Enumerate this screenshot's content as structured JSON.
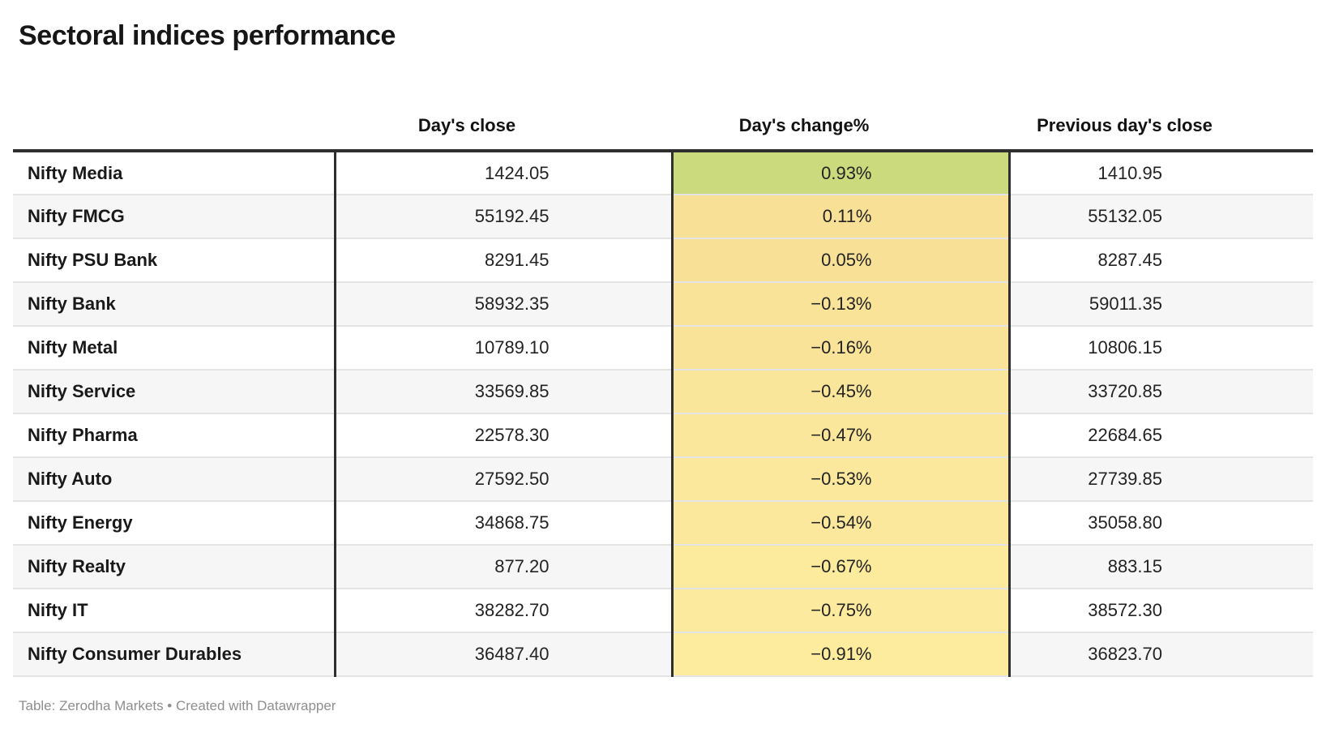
{
  "title": "Sectoral indices performance",
  "columns": {
    "index": "",
    "days_close": "Day's close",
    "days_change": "Day's change%",
    "prev_close": "Previous day's close"
  },
  "footer": "Table: Zerodha Markets • Created with Datawrapper",
  "colors": {
    "positive_cell_green": "#cbda7d",
    "negative_cell_yellow_dark": "#f8e096",
    "negative_cell_yellow_light": "#fdec9e",
    "zebra_stripe": "#f6f6f6",
    "heavy_border": "#2e2e2e",
    "row_divider": "#e4e4e4",
    "footer_text": "#8e8e8e"
  },
  "chart_data": {
    "type": "table",
    "title": "Sectoral indices performance",
    "columns": [
      "",
      "Day's close",
      "Day's change%",
      "Previous day's close"
    ],
    "rows": [
      {
        "index": "Nifty Media",
        "days_close": 1424.05,
        "days_change_pct": 0.93,
        "prev_close": 1410.95
      },
      {
        "index": "Nifty FMCG",
        "days_close": 55192.45,
        "days_change_pct": 0.11,
        "prev_close": 55132.05
      },
      {
        "index": "Nifty PSU Bank",
        "days_close": 8291.45,
        "days_change_pct": 0.05,
        "prev_close": 8287.45
      },
      {
        "index": "Nifty Bank",
        "days_close": 58932.35,
        "days_change_pct": -0.13,
        "prev_close": 59011.35
      },
      {
        "index": "Nifty Metal",
        "days_close": 10789.1,
        "days_change_pct": -0.16,
        "prev_close": 10806.15
      },
      {
        "index": "Nifty Service",
        "days_close": 33569.85,
        "days_change_pct": -0.45,
        "prev_close": 33720.85
      },
      {
        "index": "Nifty Pharma",
        "days_close": 22578.3,
        "days_change_pct": -0.47,
        "prev_close": 22684.65
      },
      {
        "index": "Nifty Auto",
        "days_close": 27592.5,
        "days_change_pct": -0.53,
        "prev_close": 27739.85
      },
      {
        "index": "Nifty Energy",
        "days_close": 34868.75,
        "days_change_pct": -0.54,
        "prev_close": 35058.8
      },
      {
        "index": "Nifty Realty",
        "days_close": 877.2,
        "days_change_pct": -0.67,
        "prev_close": 883.15
      },
      {
        "index": "Nifty IT",
        "days_close": 38282.7,
        "days_change_pct": -0.75,
        "prev_close": 38572.3
      },
      {
        "index": "Nifty Consumer Durables",
        "days_close": 36487.4,
        "days_change_pct": -0.91,
        "prev_close": 36823.7
      }
    ],
    "color_scale_note": "Day's change% cells shaded green (positive high) to pale yellow (negative)",
    "source": "Zerodha Markets",
    "tool": "Datawrapper"
  },
  "display_rows": [
    {
      "name": "Nifty Media",
      "close": "1424.05",
      "change": "0.93%",
      "prev": "1410.95",
      "change_bg": "#cbda7d"
    },
    {
      "name": "Nifty FMCG",
      "close": "55192.45",
      "change": "0.11%",
      "prev": "55132.05",
      "change_bg": "#f8e096"
    },
    {
      "name": "Nifty PSU Bank",
      "close": "8291.45",
      "change": "0.05%",
      "prev": "8287.45",
      "change_bg": "#f8e197"
    },
    {
      "name": "Nifty Bank",
      "close": "58932.35",
      "change": "−0.13%",
      "prev": "59011.35",
      "change_bg": "#f9e399"
    },
    {
      "name": "Nifty Metal",
      "close": "10789.10",
      "change": "−0.16%",
      "prev": "10806.15",
      "change_bg": "#f9e399"
    },
    {
      "name": "Nifty Service",
      "close": "33569.85",
      "change": "−0.45%",
      "prev": "33720.85",
      "change_bg": "#fae69b"
    },
    {
      "name": "Nifty Pharma",
      "close": "22578.30",
      "change": "−0.47%",
      "prev": "22684.65",
      "change_bg": "#fae79c"
    },
    {
      "name": "Nifty Auto",
      "close": "27592.50",
      "change": "−0.53%",
      "prev": "27739.85",
      "change_bg": "#fbe89c"
    },
    {
      "name": "Nifty Energy",
      "close": "34868.75",
      "change": "−0.54%",
      "prev": "35058.80",
      "change_bg": "#fbe89d"
    },
    {
      "name": "Nifty Realty",
      "close": "877.20",
      "change": "−0.67%",
      "prev": "883.15",
      "change_bg": "#fcea9d"
    },
    {
      "name": "Nifty IT",
      "close": "38282.70",
      "change": "−0.75%",
      "prev": "38572.30",
      "change_bg": "#fceb9e"
    },
    {
      "name": "Nifty Consumer Durables",
      "close": "36487.40",
      "change": "−0.91%",
      "prev": "36823.70",
      "change_bg": "#fdec9e"
    }
  ]
}
